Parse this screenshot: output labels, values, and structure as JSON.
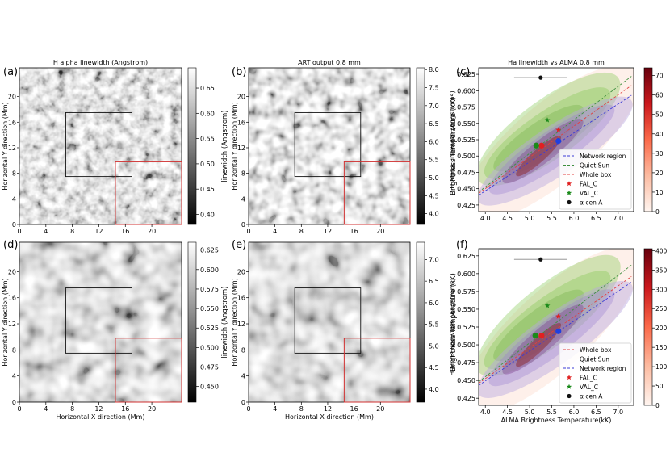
{
  "figure": {
    "panel_letters": [
      "(a)",
      "(b)",
      "(c)",
      "(d)",
      "(e)",
      "(f)"
    ]
  },
  "maps": {
    "x_ticks": [
      "0",
      "4",
      "8",
      "12",
      "16",
      "20"
    ],
    "y_ticks": [
      "0",
      "4",
      "8",
      "12",
      "16",
      "20"
    ],
    "x_tick_values": [
      0,
      4,
      8,
      12,
      16,
      20
    ],
    "y_tick_values": [
      0,
      4,
      8,
      12,
      16,
      20
    ],
    "extent_mm": 24.5,
    "xlabel": "Horizontal X direction (Mm)",
    "ylabel": "Horizontal Y direction (Mm)",
    "network_box_mm": [
      7,
      7.5,
      17,
      17.5
    ],
    "quiet_box_mm": [
      14.5,
      0,
      24.5,
      9.8
    ],
    "a": {
      "title": "H alpha linewidth (Angstrom)",
      "cbar_label": "linewidth (Angstrom)",
      "cbar_ticks": [
        "0.65",
        "0.60",
        "0.55",
        "0.50",
        "0.45",
        "0.40"
      ],
      "cbar_values": [
        0.65,
        0.6,
        0.55,
        0.5,
        0.45,
        0.4
      ],
      "cbar_range": [
        0.38,
        0.69
      ]
    },
    "b": {
      "title": "ART output 0.8 mm",
      "cbar_label": "Brightness Temperature (kK)",
      "cbar_ticks": [
        "8.0",
        "7.5",
        "7.0",
        "6.5",
        "6.0",
        "5.5",
        "5.0",
        "4.5",
        "4.0"
      ],
      "cbar_values": [
        8.0,
        7.5,
        7.0,
        6.5,
        6.0,
        5.5,
        5.0,
        4.5,
        4.0
      ],
      "cbar_range": [
        3.7,
        8.05
      ]
    },
    "d": {
      "title": "",
      "cbar_label": "linewidth (Angstrom)",
      "cbar_ticks": [
        "0.625",
        "0.600",
        "0.575",
        "0.550",
        "0.525",
        "0.500",
        "0.475",
        "0.450"
      ],
      "cbar_values": [
        0.625,
        0.6,
        0.575,
        0.55,
        0.525,
        0.5,
        0.475,
        0.45
      ],
      "cbar_range": [
        0.43,
        0.635
      ]
    },
    "e": {
      "title": "",
      "cbar_label": "Brightness Temperature (kK)",
      "cbar_ticks": [
        "7.0",
        "6.5",
        "6.0",
        "5.5",
        "5.0",
        "4.5",
        "4.0"
      ],
      "cbar_values": [
        7.0,
        6.5,
        6.0,
        5.5,
        5.0,
        4.5,
        4.0
      ],
      "cbar_range": [
        3.7,
        7.4
      ]
    }
  },
  "chart_data": [
    {
      "panel": "c",
      "type": "scatter",
      "title": "Ha linewidth vs ALMA 0.8 mm",
      "xlabel": "",
      "ylabel": "H alpha linewidth (Angstroms)",
      "xlim": [
        3.85,
        7.35
      ],
      "ylim": [
        0.415,
        0.635
      ],
      "x_ticks": [
        "4.0",
        "4.5",
        "5.0",
        "5.5",
        "6.0",
        "6.5",
        "7.0"
      ],
      "x_tick_values": [
        4.0,
        4.5,
        5.0,
        5.5,
        6.0,
        6.5,
        7.0
      ],
      "y_ticks": [
        "0.425",
        "0.450",
        "0.475",
        "0.500",
        "0.525",
        "0.550",
        "0.575",
        "0.600",
        "0.625"
      ],
      "y_tick_values": [
        0.425,
        0.45,
        0.475,
        0.5,
        0.525,
        0.55,
        0.575,
        0.6,
        0.625
      ],
      "colorbar": {
        "ticks": [
          "70",
          "60",
          "50",
          "40",
          "30",
          "20",
          "10",
          "0"
        ],
        "values": [
          70,
          60,
          50,
          40,
          30,
          20,
          10,
          0
        ],
        "range": [
          0,
          74
        ]
      },
      "lines": [
        {
          "name": "Network region",
          "color": "#3b3bd6",
          "x": [
            3.85,
            7.3
          ],
          "y": [
            0.44,
            0.593
          ]
        },
        {
          "name": "Quiet Sun",
          "color": "#3f8f3f",
          "x": [
            3.85,
            7.3
          ],
          "y": [
            0.445,
            0.622
          ]
        },
        {
          "name": "Whole box",
          "color": "#e04040",
          "x": [
            3.85,
            7.3
          ],
          "y": [
            0.443,
            0.608
          ]
        }
      ],
      "markers": [
        {
          "name": "FAL_C",
          "shape": "star",
          "color": "#e02020",
          "x": 5.65,
          "y": 0.54
        },
        {
          "name": "VAL_C",
          "shape": "star",
          "color": "#1a8a1a",
          "x": 5.4,
          "y": 0.555
        },
        {
          "name": "α cen A",
          "shape": "dot",
          "color": "#111111",
          "x": 5.25,
          "y": 0.62,
          "xerr": 0.6
        }
      ],
      "extra_points": [
        {
          "color": "#e02020",
          "x": 5.27,
          "y": 0.516
        },
        {
          "color": "#1a8a1a",
          "x": 5.15,
          "y": 0.516
        },
        {
          "color": "#1f3fe0",
          "x": 5.65,
          "y": 0.523
        }
      ],
      "legend": {
        "position": "lower-right",
        "order": [
          "Network region",
          "Quiet Sun",
          "Whole box",
          "FAL_C",
          "VAL_C",
          "α cen A"
        ]
      }
    },
    {
      "panel": "f",
      "type": "scatter",
      "title": "",
      "xlabel": "ALMA Brightness Temperature(kK)",
      "ylabel": "H alpha linewidth (Angstroms)",
      "xlim": [
        3.85,
        7.35
      ],
      "ylim": [
        0.415,
        0.635
      ],
      "x_ticks": [
        "4.0",
        "4.5",
        "5.0",
        "5.5",
        "6.0",
        "6.5",
        "7.0"
      ],
      "x_tick_values": [
        4.0,
        4.5,
        5.0,
        5.5,
        6.0,
        6.5,
        7.0
      ],
      "y_ticks": [
        "0.425",
        "0.450",
        "0.475",
        "0.500",
        "0.525",
        "0.550",
        "0.575",
        "0.600",
        "0.625"
      ],
      "y_tick_values": [
        0.425,
        0.45,
        0.475,
        0.5,
        0.525,
        0.55,
        0.575,
        0.6,
        0.625
      ],
      "colorbar": {
        "ticks": [
          "400",
          "350",
          "300",
          "250",
          "200",
          "150",
          "100",
          "50",
          "0"
        ],
        "values": [
          400,
          350,
          300,
          250,
          200,
          150,
          100,
          50,
          0
        ],
        "range": [
          0,
          405
        ]
      },
      "lines": [
        {
          "name": "Whole box",
          "color": "#e04040",
          "x": [
            3.85,
            7.3
          ],
          "y": [
            0.446,
            0.596
          ]
        },
        {
          "name": "Quiet Sun",
          "color": "#3f8f3f",
          "x": [
            3.85,
            7.3
          ],
          "y": [
            0.448,
            0.612
          ]
        },
        {
          "name": "Network region",
          "color": "#3b3bd6",
          "x": [
            3.85,
            7.3
          ],
          "y": [
            0.443,
            0.588
          ]
        }
      ],
      "markers": [
        {
          "name": "FAL_C",
          "shape": "star",
          "color": "#e02020",
          "x": 5.65,
          "y": 0.54
        },
        {
          "name": "VAL_C",
          "shape": "star",
          "color": "#1a8a1a",
          "x": 5.4,
          "y": 0.555
        },
        {
          "name": "α cen A",
          "shape": "dot",
          "color": "#111111",
          "x": 5.25,
          "y": 0.62,
          "xerr": 0.6
        }
      ],
      "extra_points": [
        {
          "color": "#e02020",
          "x": 5.27,
          "y": 0.513
        },
        {
          "color": "#1a8a1a",
          "x": 5.13,
          "y": 0.513
        },
        {
          "color": "#1f3fe0",
          "x": 5.65,
          "y": 0.519
        }
      ],
      "legend": {
        "position": "lower-right",
        "order": [
          "Whole box",
          "Quiet Sun",
          "Network region",
          "FAL_C",
          "VAL_C",
          "α cen A"
        ]
      }
    }
  ]
}
